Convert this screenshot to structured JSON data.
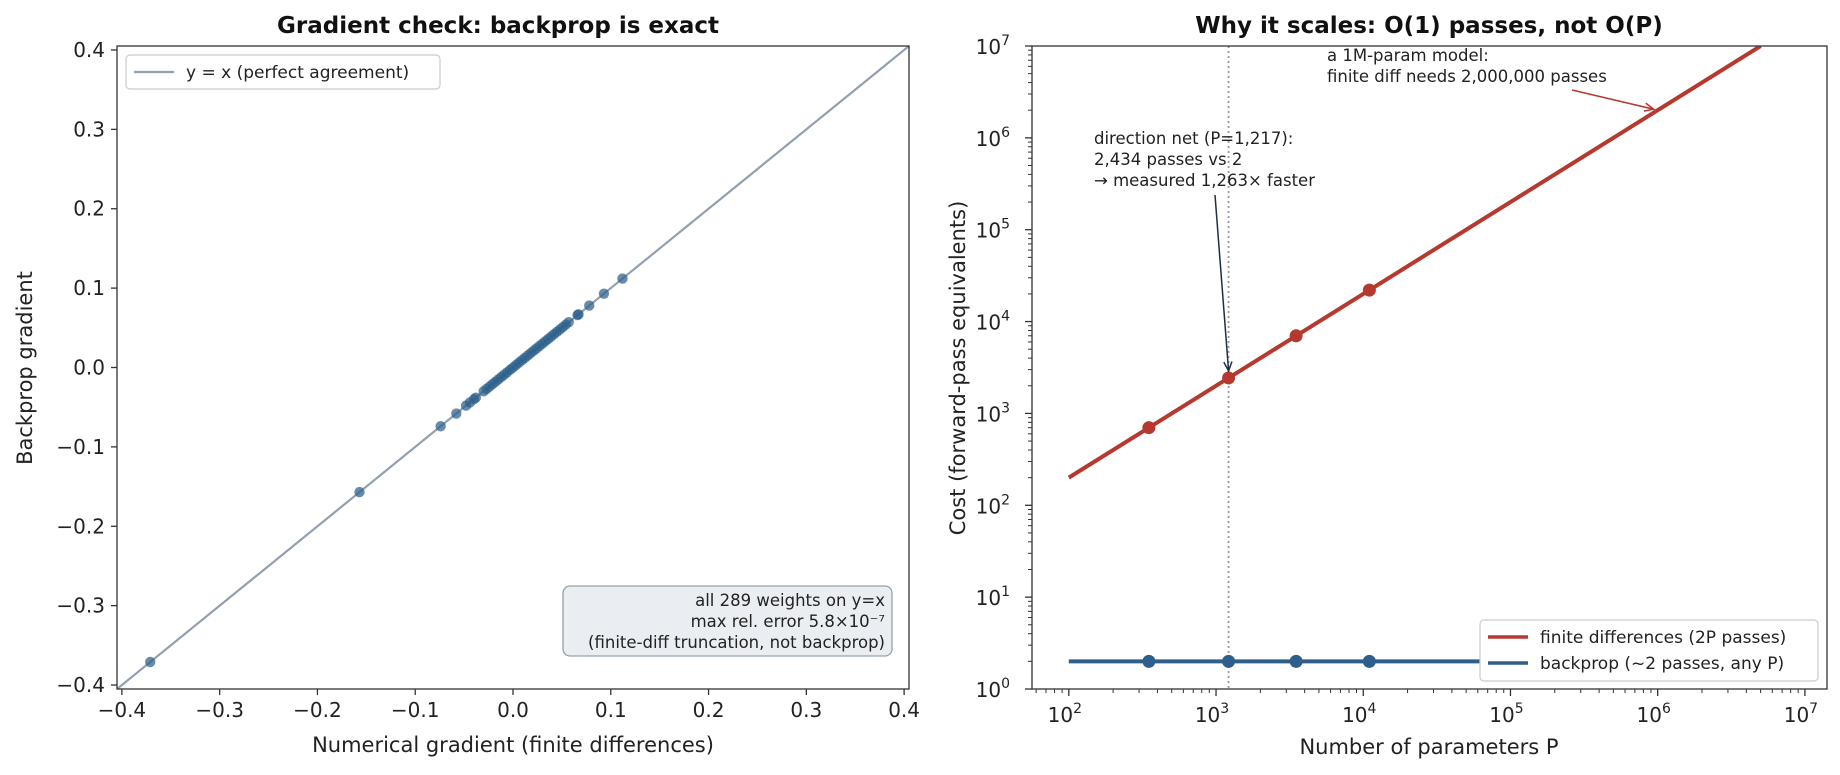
{
  "chart_data": [
    {
      "type": "scatter",
      "title": "Gradient check: backprop is exact",
      "xlabel": "Numerical gradient (finite differences)",
      "ylabel": "Backprop gradient",
      "xlim": [
        -0.405,
        0.405
      ],
      "ylim": [
        -0.405,
        0.405
      ],
      "ticks": [
        -0.4,
        -0.3,
        -0.2,
        -0.1,
        0.0,
        0.1,
        0.2,
        0.3,
        0.4
      ],
      "tick_labels": [
        "−0.4",
        "−0.3",
        "−0.2",
        "−0.1",
        "0.0",
        "0.1",
        "0.2",
        "0.3",
        "0.4"
      ],
      "grid": false,
      "legend": {
        "position": "top-left",
        "entries": [
          "y = x (perfect agreement)"
        ]
      },
      "reference_line": {
        "label": "y = x (perfect agreement)",
        "color": "#94a0b0"
      },
      "points_color": "#2d5f8a",
      "points": [
        [
          -0.371,
          -0.371
        ],
        [
          -0.157,
          -0.157
        ],
        [
          -0.074,
          -0.074
        ],
        [
          -0.058,
          -0.058
        ],
        [
          -0.048,
          -0.048
        ],
        [
          -0.044,
          -0.044
        ],
        [
          -0.04,
          -0.04
        ],
        [
          -0.038,
          -0.038
        ],
        [
          -0.03,
          -0.03
        ],
        [
          -0.027,
          -0.027
        ],
        [
          -0.024,
          -0.024
        ],
        [
          -0.021,
          -0.021
        ],
        [
          -0.018,
          -0.018
        ],
        [
          -0.015,
          -0.015
        ],
        [
          -0.012,
          -0.012
        ],
        [
          -0.009,
          -0.009
        ],
        [
          -0.006,
          -0.006
        ],
        [
          -0.003,
          -0.003
        ],
        [
          0.0,
          0.0
        ],
        [
          0.003,
          0.003
        ],
        [
          0.006,
          0.006
        ],
        [
          0.009,
          0.009
        ],
        [
          0.012,
          0.012
        ],
        [
          0.015,
          0.015
        ],
        [
          0.018,
          0.018
        ],
        [
          0.021,
          0.021
        ],
        [
          0.024,
          0.024
        ],
        [
          0.027,
          0.027
        ],
        [
          0.03,
          0.03
        ],
        [
          0.033,
          0.033
        ],
        [
          0.036,
          0.036
        ],
        [
          0.039,
          0.039
        ],
        [
          0.042,
          0.042
        ],
        [
          0.045,
          0.045
        ],
        [
          0.048,
          0.048
        ],
        [
          0.051,
          0.051
        ],
        [
          0.054,
          0.054
        ],
        [
          0.057,
          0.057
        ],
        [
          0.066,
          0.066
        ],
        [
          0.067,
          0.067
        ],
        [
          0.078,
          0.078
        ],
        [
          0.093,
          0.093
        ],
        [
          0.112,
          0.112
        ]
      ],
      "annotation": [
        "all 289 weights on y=x",
        "max rel. error 5.8×10⁻⁷",
        "(finite-diff truncation, not backprop)"
      ]
    },
    {
      "type": "line",
      "title": "Why it scales: O(1) passes, not O(P)",
      "xlabel": "Number of parameters  P",
      "ylabel": "Cost (forward-pass equivalents)",
      "x_scale": "log",
      "y_scale": "log",
      "xlim_log10": [
        1.75,
        7.15
      ],
      "ylim_log10": [
        0,
        7
      ],
      "x_ticks_exp": [
        2,
        3,
        4,
        5,
        6,
        7
      ],
      "y_ticks_exp": [
        0,
        1,
        2,
        3,
        4,
        5,
        6,
        7
      ],
      "grid": false,
      "legend": {
        "position": "bottom-right"
      },
      "series": [
        {
          "name": "finite differences  (2P passes)",
          "color": "#b5392f",
          "x": [
            100,
            5000000
          ],
          "y": [
            200,
            10000000
          ],
          "markers": [
            [
              350,
              700
            ],
            [
              1217,
              2434
            ],
            [
              3500,
              7000
            ],
            [
              11000,
              22000
            ]
          ]
        },
        {
          "name": "backprop  (~2 passes, any P)",
          "color": "#2d5f8a",
          "x": [
            100,
            5000000
          ],
          "y": [
            2,
            2
          ],
          "markers": [
            [
              350,
              2
            ],
            [
              1217,
              2
            ],
            [
              3500,
              2
            ],
            [
              11000,
              2
            ]
          ]
        }
      ],
      "vline": {
        "x": 1217
      },
      "annotation_net": [
        "direction net (P=1,217):",
        "2,434 passes  vs  2",
        "→ measured 1,263× faster"
      ],
      "annotation_net_color": "#1e2f45",
      "annotation_1m": [
        "a 1M-param model:",
        "finite diff needs 2,000,000 passes"
      ],
      "annotation_1m_color": "#b5392f",
      "annotation_1m_target": [
        1000000,
        2000000
      ]
    }
  ]
}
